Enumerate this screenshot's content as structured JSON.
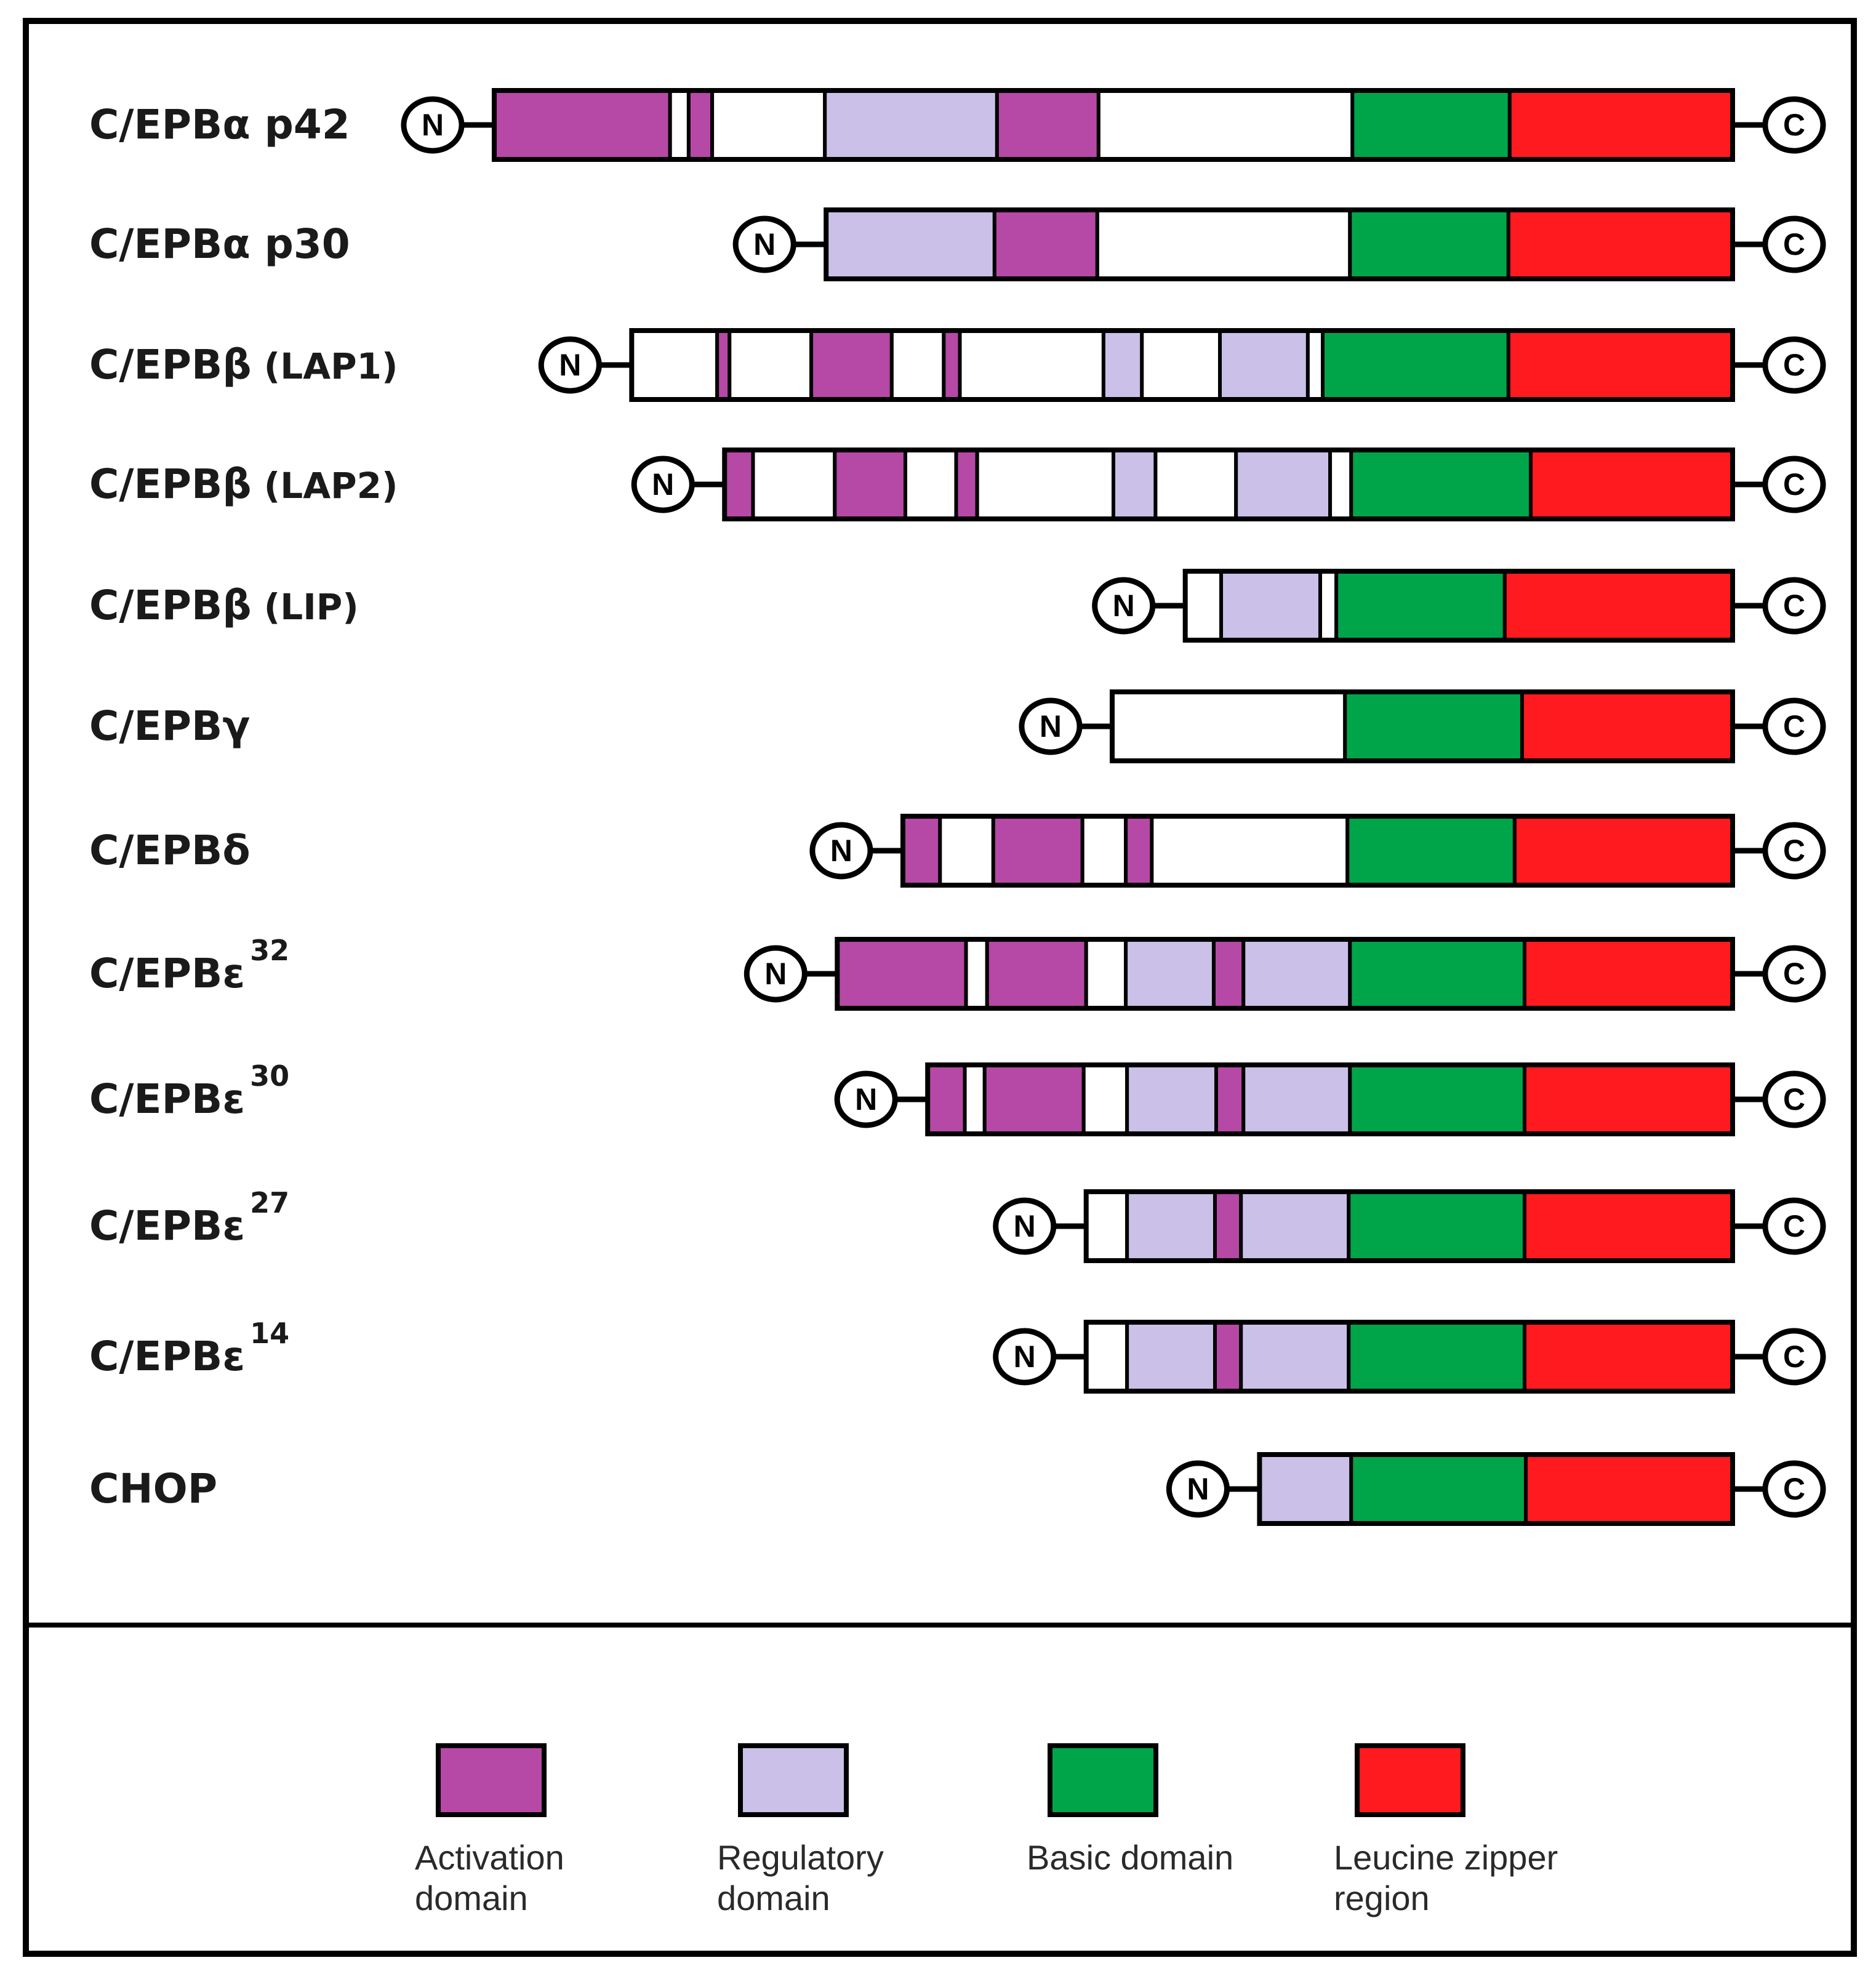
{
  "colors": {
    "activation": "#b648a6",
    "regulatory": "#cbc0e8",
    "basic": "#00a54a",
    "zipper": "#ff1a1f",
    "none": "#ffffff"
  },
  "terminals": {
    "n": "N",
    "c": "C"
  },
  "proteins": [
    {
      "id": "cebpa-p42",
      "base": "C/EPB",
      "greek": "α",
      "suffix": " p42",
      "sup": "",
      "start": 0.0,
      "segments": [
        {
          "t": "activation",
          "s": 0.0,
          "e": 14.2
        },
        {
          "t": "none",
          "s": 14.2,
          "e": 15.7
        },
        {
          "t": "activation",
          "s": 15.7,
          "e": 17.6
        },
        {
          "t": "none",
          "s": 17.6,
          "e": 26.7
        },
        {
          "t": "regulatory",
          "s": 26.7,
          "e": 40.6
        },
        {
          "t": "activation",
          "s": 40.6,
          "e": 48.8
        },
        {
          "t": "none",
          "s": 48.8,
          "e": 69.3
        },
        {
          "t": "basic",
          "s": 69.3,
          "e": 82.0
        },
        {
          "t": "zipper",
          "s": 82.0,
          "e": 100
        }
      ]
    },
    {
      "id": "cebpa-p30",
      "base": "C/EPB",
      "greek": "α",
      "suffix": " p30",
      "sup": "",
      "start": 26.8,
      "segments": [
        {
          "t": "regulatory",
          "s": 26.8,
          "e": 40.4
        },
        {
          "t": "activation",
          "s": 40.4,
          "e": 48.7
        },
        {
          "t": "none",
          "s": 48.7,
          "e": 69.1
        },
        {
          "t": "basic",
          "s": 69.1,
          "e": 81.9
        },
        {
          "t": "zipper",
          "s": 81.9,
          "e": 100
        }
      ]
    },
    {
      "id": "cebpb-lap1",
      "base": "C/EPB",
      "greek": "β",
      "suffix": " (LAP1)",
      "sup": "",
      "start": 11.1,
      "segments": [
        {
          "t": "none",
          "s": 11.1,
          "e": 18.0
        },
        {
          "t": "activation",
          "s": 18.0,
          "e": 19.0
        },
        {
          "t": "none",
          "s": 19.0,
          "e": 25.6
        },
        {
          "t": "activation",
          "s": 25.6,
          "e": 32.1
        },
        {
          "t": "none",
          "s": 32.1,
          "e": 36.3
        },
        {
          "t": "activation",
          "s": 36.3,
          "e": 37.6
        },
        {
          "t": "none",
          "s": 37.6,
          "e": 49.2
        },
        {
          "t": "regulatory",
          "s": 49.2,
          "e": 52.3
        },
        {
          "t": "none",
          "s": 52.3,
          "e": 58.6
        },
        {
          "t": "regulatory",
          "s": 58.6,
          "e": 65.7
        },
        {
          "t": "none",
          "s": 65.7,
          "e": 66.9
        },
        {
          "t": "basic",
          "s": 66.9,
          "e": 81.9
        },
        {
          "t": "zipper",
          "s": 81.9,
          "e": 100
        }
      ]
    },
    {
      "id": "cebpb-lap2",
      "base": "C/EPB",
      "greek": "β",
      "suffix": " (LAP2)",
      "sup": "",
      "start": 18.6,
      "segments": [
        {
          "t": "activation",
          "s": 18.6,
          "e": 20.9
        },
        {
          "t": "none",
          "s": 20.9,
          "e": 27.5
        },
        {
          "t": "activation",
          "s": 27.5,
          "e": 33.2
        },
        {
          "t": "none",
          "s": 33.2,
          "e": 37.3
        },
        {
          "t": "activation",
          "s": 37.3,
          "e": 39.0
        },
        {
          "t": "none",
          "s": 39.0,
          "e": 50.0
        },
        {
          "t": "regulatory",
          "s": 50.0,
          "e": 53.4
        },
        {
          "t": "none",
          "s": 53.4,
          "e": 59.9
        },
        {
          "t": "regulatory",
          "s": 59.9,
          "e": 67.5
        },
        {
          "t": "none",
          "s": 67.5,
          "e": 69.2
        },
        {
          "t": "basic",
          "s": 69.2,
          "e": 83.7
        },
        {
          "t": "zipper",
          "s": 83.7,
          "e": 100
        }
      ]
    },
    {
      "id": "cebpb-lip",
      "base": "C/EPB",
      "greek": "β",
      "suffix": " (LIP)",
      "sup": "",
      "start": 55.8,
      "segments": [
        {
          "t": "none",
          "s": 55.8,
          "e": 58.7
        },
        {
          "t": "regulatory",
          "s": 58.7,
          "e": 66.7
        },
        {
          "t": "none",
          "s": 66.7,
          "e": 68.0
        },
        {
          "t": "basic",
          "s": 68.0,
          "e": 81.6
        },
        {
          "t": "zipper",
          "s": 81.6,
          "e": 100
        }
      ]
    },
    {
      "id": "cebpg",
      "base": "C/EPB",
      "greek": "γ",
      "suffix": "",
      "sup": "",
      "start": 49.9,
      "segments": [
        {
          "t": "none",
          "s": 49.9,
          "e": 68.7
        },
        {
          "t": "basic",
          "s": 68.7,
          "e": 83.0
        },
        {
          "t": "zipper",
          "s": 83.0,
          "e": 100
        }
      ]
    },
    {
      "id": "cebpd",
      "base": "C/EPB",
      "greek": "δ",
      "suffix": "",
      "sup": "",
      "start": 33.0,
      "segments": [
        {
          "t": "activation",
          "s": 33.0,
          "e": 36.0
        },
        {
          "t": "none",
          "s": 36.0,
          "e": 40.3
        },
        {
          "t": "activation",
          "s": 40.3,
          "e": 47.5
        },
        {
          "t": "none",
          "s": 47.5,
          "e": 51.0
        },
        {
          "t": "activation",
          "s": 51.0,
          "e": 53.1
        },
        {
          "t": "none",
          "s": 53.1,
          "e": 68.9
        },
        {
          "t": "basic",
          "s": 68.9,
          "e": 82.4
        },
        {
          "t": "zipper",
          "s": 82.4,
          "e": 100
        }
      ]
    },
    {
      "id": "cebpe32",
      "base": "C/EPB",
      "greek": "ε",
      "suffix": "",
      "sup": "32",
      "start": 27.7,
      "segments": [
        {
          "t": "activation",
          "s": 27.7,
          "e": 38.1
        },
        {
          "t": "none",
          "s": 38.1,
          "e": 39.8
        },
        {
          "t": "activation",
          "s": 39.8,
          "e": 47.8
        },
        {
          "t": "none",
          "s": 47.8,
          "e": 51.0
        },
        {
          "t": "regulatory",
          "s": 51.0,
          "e": 58.1
        },
        {
          "t": "activation",
          "s": 58.1,
          "e": 60.5
        },
        {
          "t": "regulatory",
          "s": 60.5,
          "e": 69.1
        },
        {
          "t": "basic",
          "s": 69.1,
          "e": 83.2
        },
        {
          "t": "zipper",
          "s": 83.2,
          "e": 100
        }
      ]
    },
    {
      "id": "cebpe30",
      "base": "C/EPB",
      "greek": "ε",
      "suffix": "",
      "sup": "30",
      "start": 35.0,
      "segments": [
        {
          "t": "activation",
          "s": 35.0,
          "e": 38.0
        },
        {
          "t": "none",
          "s": 38.0,
          "e": 39.6
        },
        {
          "t": "activation",
          "s": 39.6,
          "e": 47.6
        },
        {
          "t": "none",
          "s": 47.6,
          "e": 51.1
        },
        {
          "t": "regulatory",
          "s": 51.1,
          "e": 58.3
        },
        {
          "t": "activation",
          "s": 58.3,
          "e": 60.5
        },
        {
          "t": "regulatory",
          "s": 60.5,
          "e": 69.1
        },
        {
          "t": "basic",
          "s": 69.1,
          "e": 83.2
        },
        {
          "t": "zipper",
          "s": 83.2,
          "e": 100
        }
      ]
    },
    {
      "id": "cebpe27",
      "base": "C/EPB",
      "greek": "ε",
      "suffix": "",
      "sup": "27",
      "start": 47.8,
      "segments": [
        {
          "t": "none",
          "s": 47.8,
          "e": 51.1
        },
        {
          "t": "regulatory",
          "s": 51.1,
          "e": 58.2
        },
        {
          "t": "activation",
          "s": 58.2,
          "e": 60.3
        },
        {
          "t": "regulatory",
          "s": 60.3,
          "e": 69.0
        },
        {
          "t": "basic",
          "s": 69.0,
          "e": 83.2
        },
        {
          "t": "zipper",
          "s": 83.2,
          "e": 100
        }
      ]
    },
    {
      "id": "cebpe14",
      "base": "C/EPB",
      "greek": "ε",
      "suffix": "",
      "sup": "14",
      "start": 47.8,
      "segments": [
        {
          "t": "none",
          "s": 47.8,
          "e": 51.1
        },
        {
          "t": "regulatory",
          "s": 51.1,
          "e": 58.2
        },
        {
          "t": "activation",
          "s": 58.2,
          "e": 60.3
        },
        {
          "t": "regulatory",
          "s": 60.3,
          "e": 69.0
        },
        {
          "t": "basic",
          "s": 69.0,
          "e": 83.2
        },
        {
          "t": "zipper",
          "s": 83.2,
          "e": 100
        }
      ]
    },
    {
      "id": "chop",
      "base": "CHOP",
      "greek": "",
      "suffix": "",
      "sup": "",
      "start": 61.8,
      "segments": [
        {
          "t": "regulatory",
          "s": 61.8,
          "e": 69.2
        },
        {
          "t": "basic",
          "s": 69.2,
          "e": 83.3
        },
        {
          "t": "zipper",
          "s": 83.3,
          "e": 100
        }
      ]
    }
  ],
  "legend": [
    {
      "type": "activation",
      "lines": [
        "Activation",
        "domain"
      ]
    },
    {
      "type": "regulatory",
      "lines": [
        "Regulatory",
        "domain"
      ]
    },
    {
      "type": "basic",
      "lines": [
        "Basic domain"
      ]
    },
    {
      "type": "zipper",
      "lines": [
        "Leucine zipper",
        "region"
      ]
    }
  ]
}
